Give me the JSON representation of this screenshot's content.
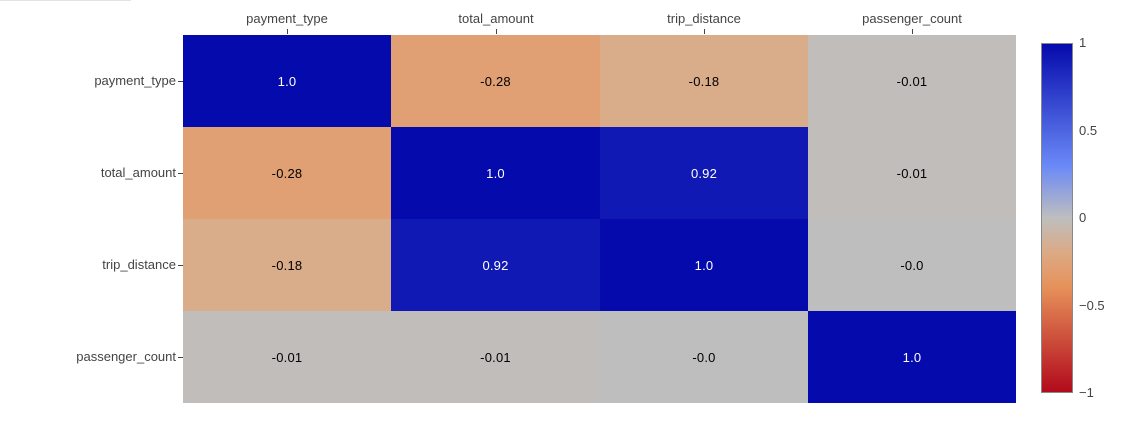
{
  "figure": {
    "background_color": "#ffffff",
    "top_left_divider_color": "#e3e3e3",
    "axis_text_color": "#444444"
  },
  "chart_data": {
    "type": "heatmap",
    "title": "",
    "x_labels": [
      "payment_type",
      "total_amount",
      "trip_distance",
      "passenger_count"
    ],
    "y_labels": [
      "payment_type",
      "total_amount",
      "trip_distance",
      "passenger_count"
    ],
    "z": [
      [
        1.0,
        -0.28,
        -0.18,
        -0.01
      ],
      [
        -0.28,
        1.0,
        0.92,
        -0.01
      ],
      [
        -0.18,
        0.92,
        1.0,
        -0.0
      ],
      [
        -0.01,
        -0.01,
        -0.0,
        1.0
      ]
    ],
    "cell_text": [
      [
        "1.0",
        "-0.28",
        "-0.18",
        "-0.01"
      ],
      [
        "-0.28",
        "1.0",
        "0.92",
        "-0.01"
      ],
      [
        "-0.18",
        "0.92",
        "1.0",
        "-0.0"
      ],
      [
        "-0.01",
        "-0.01",
        "-0.0",
        "1.0"
      ]
    ],
    "zmin": -1,
    "zmax": 1,
    "grid": false,
    "legend_position": "right",
    "colorbar_ticks": [
      {
        "label": "1",
        "value": 1
      },
      {
        "label": "0.5",
        "value": 0.5
      },
      {
        "label": "0",
        "value": 0
      },
      {
        "label": "−0.5",
        "value": -0.5
      },
      {
        "label": "−1",
        "value": -1
      }
    ],
    "colorscale": [
      {
        "value": 1.0,
        "rgb": [
          5,
          10,
          172
        ]
      },
      {
        "value": 0.3,
        "rgb": [
          106,
          137,
          247
        ]
      },
      {
        "value": 0.0,
        "rgb": [
          190,
          190,
          190
        ]
      },
      {
        "value": -0.2,
        "rgb": [
          220,
          170,
          132
        ]
      },
      {
        "value": -0.4,
        "rgb": [
          230,
          145,
          90
        ]
      },
      {
        "value": -1.0,
        "rgb": [
          178,
          10,
          28
        ]
      }
    ],
    "cell_text_colors": {
      "on_dark": "#ffffff",
      "on_light": "#000000"
    }
  }
}
